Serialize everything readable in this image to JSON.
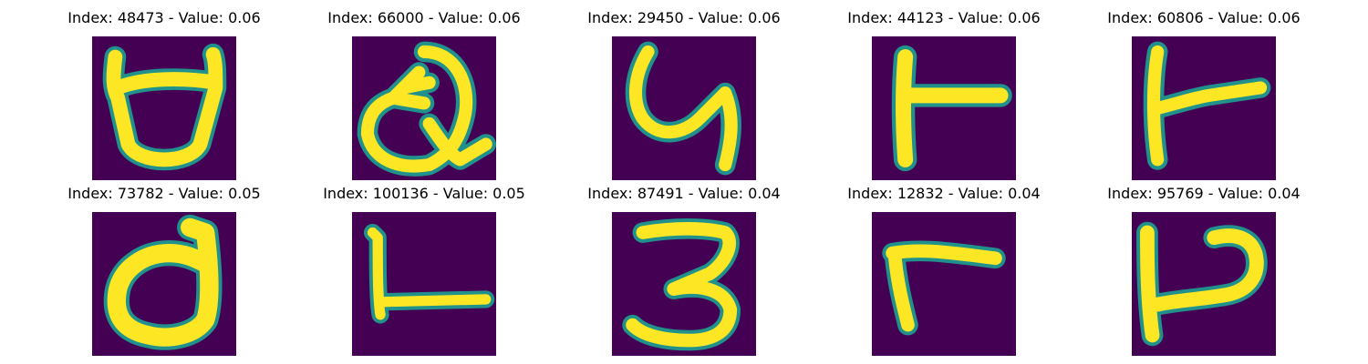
{
  "figure": {
    "colormap": "viridis",
    "background_color": "#440154",
    "stroke_color": "#fde725",
    "edge_color": "#21918c",
    "panels": [
      {
        "title": "Index: 48473 - Value: 0.06",
        "glyph": "open-bowl-with-horns"
      },
      {
        "title": "Index: 66000 - Value: 0.06",
        "glyph": "looped-q"
      },
      {
        "title": "Index: 29450 - Value: 0.06",
        "glyph": "y-shape"
      },
      {
        "title": "Index: 44123 - Value: 0.06",
        "glyph": "t-rotated"
      },
      {
        "title": "Index: 60806 - Value: 0.06",
        "glyph": "t-rotated-slanted"
      },
      {
        "title": "Index: 73782 - Value: 0.05",
        "glyph": "open-bowl-with-horn"
      },
      {
        "title": "Index: 100136 - Value: 0.05",
        "glyph": "t-rotated-thin"
      },
      {
        "title": "Index: 87491 - Value: 0.04",
        "glyph": "three"
      },
      {
        "title": "Index: 12832 - Value: 0.04",
        "glyph": "hook-seven"
      },
      {
        "title": "Index: 95769 - Value: 0.04",
        "glyph": "p-rotated"
      }
    ]
  }
}
